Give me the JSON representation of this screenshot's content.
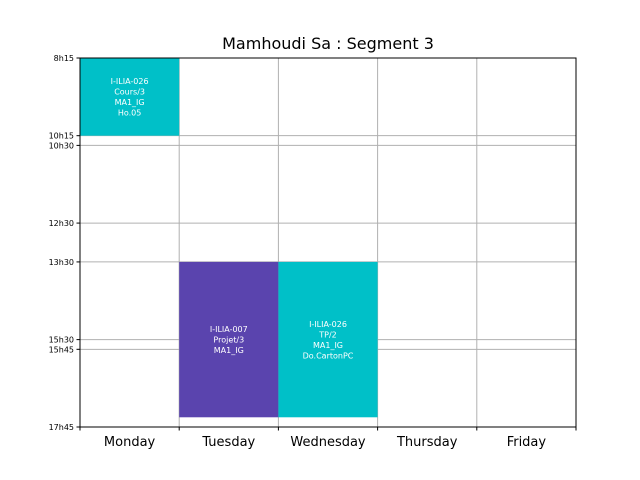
{
  "chart_data": {
    "type": "timetable",
    "title": "Mamhoudi Sa : Segment 3",
    "days": [
      "Monday",
      "Tuesday",
      "Wednesday",
      "Thursday",
      "Friday"
    ],
    "time_range": [
      "8h15",
      "17h45"
    ],
    "time_ticks": [
      "8h15",
      "10h15",
      "10h30",
      "12h30",
      "13h30",
      "15h30",
      "15h45",
      "17h45"
    ],
    "grid": true,
    "events": [
      {
        "day": "Monday",
        "start": "8h15",
        "end": "10h15",
        "color": "#00c0c8",
        "lines": [
          "I-ILIA-026",
          "Cours/3",
          "MA1_IG",
          "Ho.05"
        ]
      },
      {
        "day": "Tuesday",
        "start": "13h30",
        "end": "17h30",
        "color": "#5a44ae",
        "lines": [
          "I-ILIA-007",
          "Projet/3",
          "MA1_IG"
        ]
      },
      {
        "day": "Wednesday",
        "start": "13h30",
        "end": "17h30",
        "color": "#00c0c8",
        "lines": [
          "I-ILIA-026",
          "TP/2",
          "MA1_IG",
          "Do.CartonPC"
        ]
      }
    ]
  }
}
